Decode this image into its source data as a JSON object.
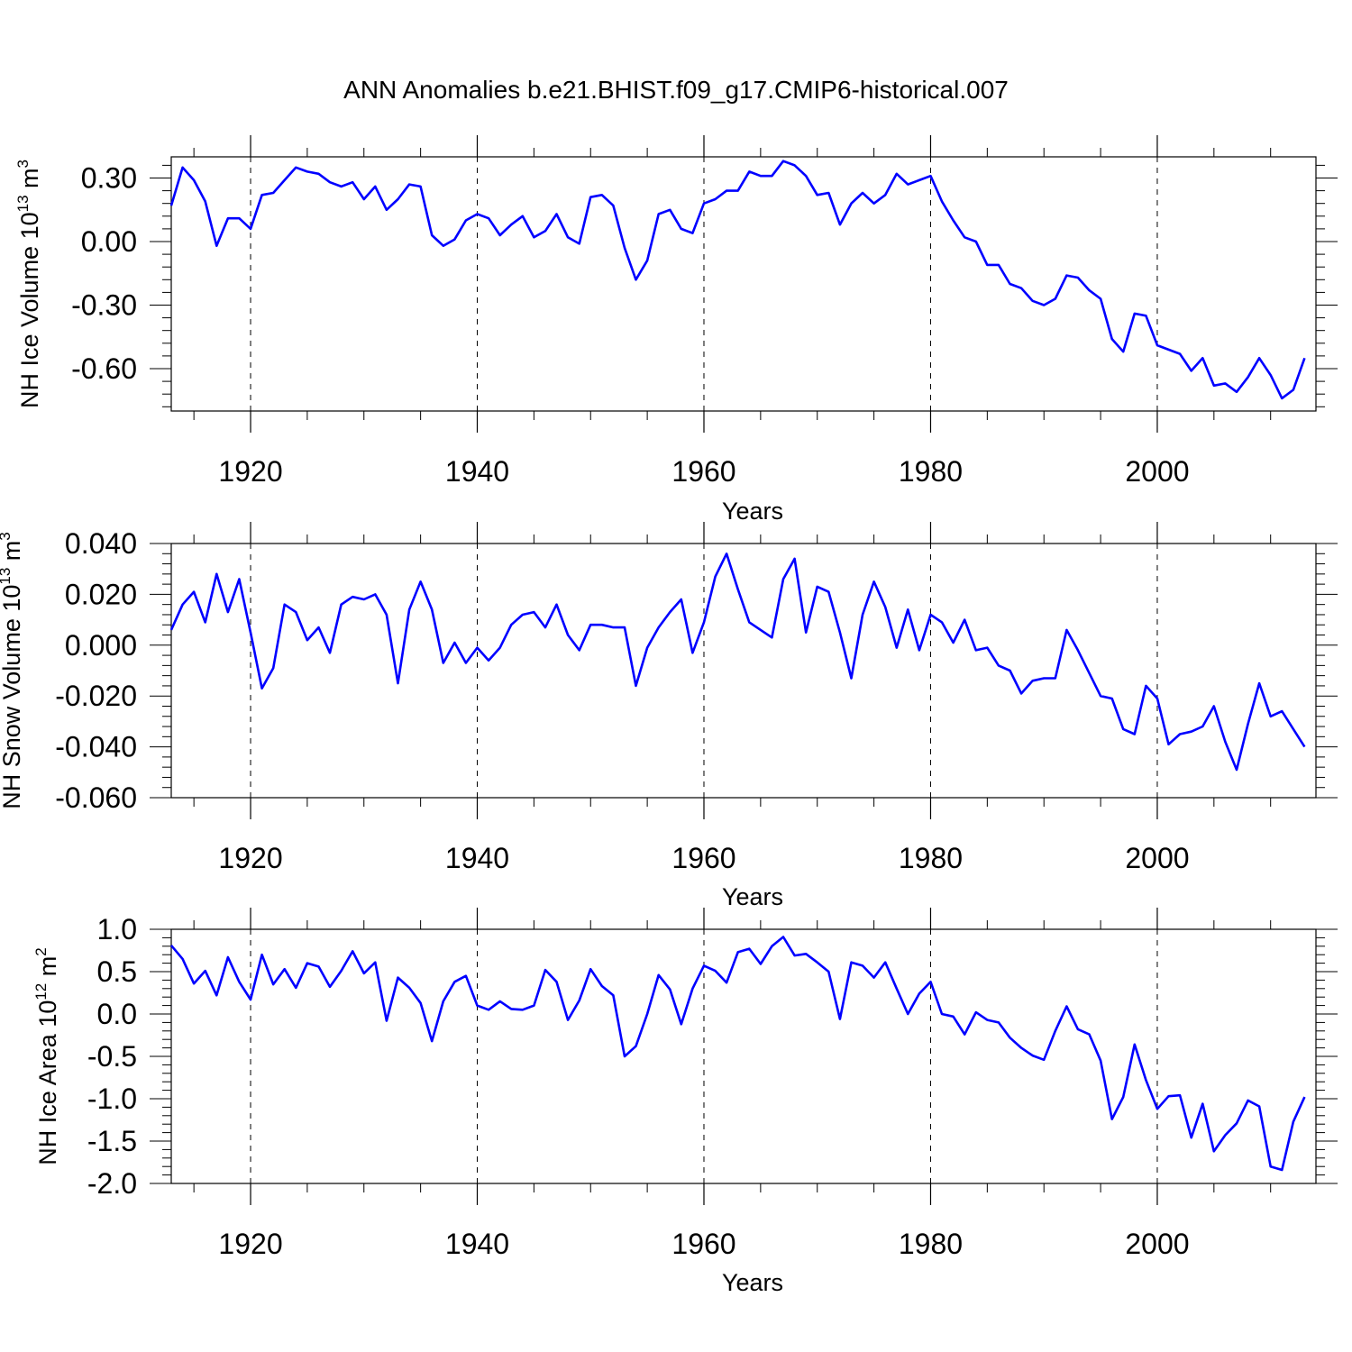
{
  "title": "ANN Anomalies b.e21.BHIST.f09_g17.CMIP6-historical.007",
  "line_color": "#0000ff",
  "chart_data": [
    {
      "type": "line",
      "ylabel": "NH Ice Volume 10",
      "ylabel_exp": "13",
      "ylabel_unit": "m",
      "ylabel_unit_exp": "3",
      "xlabel": "Years",
      "xlim": [
        1913,
        2014
      ],
      "ylim": [
        -0.8,
        0.4
      ],
      "xticks": [
        1920,
        1940,
        1960,
        1980,
        2000
      ],
      "xtick_labels": [
        "1920",
        "1940",
        "1960",
        "1980",
        "2000"
      ],
      "yticks": [
        0.3,
        0.0,
        -0.3,
        -0.6
      ],
      "ytick_labels": [
        "0.30",
        "0.00",
        "-0.30",
        "-0.60"
      ],
      "x_start": 1913,
      "y": [
        0.17,
        0.35,
        0.29,
        0.19,
        -0.02,
        0.11,
        0.11,
        0.06,
        0.22,
        0.23,
        0.29,
        0.35,
        0.33,
        0.32,
        0.28,
        0.26,
        0.28,
        0.2,
        0.26,
        0.15,
        0.2,
        0.27,
        0.26,
        0.03,
        -0.02,
        0.01,
        0.1,
        0.13,
        0.11,
        0.03,
        0.08,
        0.12,
        0.02,
        0.05,
        0.13,
        0.02,
        -0.01,
        0.21,
        0.22,
        0.17,
        -0.03,
        -0.18,
        -0.09,
        0.13,
        0.15,
        0.06,
        0.04,
        0.18,
        0.2,
        0.24,
        0.24,
        0.33,
        0.31,
        0.31,
        0.38,
        0.36,
        0.31,
        0.22,
        0.23,
        0.08,
        0.18,
        0.23,
        0.18,
        0.22,
        0.32,
        0.27,
        0.29,
        0.31,
        0.19,
        0.1,
        0.02,
        0.0,
        -0.11,
        -0.11,
        -0.2,
        -0.22,
        -0.28,
        -0.3,
        -0.27,
        -0.16,
        -0.17,
        -0.23,
        -0.27,
        -0.46,
        -0.52,
        -0.34,
        -0.35,
        -0.49,
        -0.51,
        -0.53,
        -0.61,
        -0.55,
        -0.68,
        -0.67,
        -0.71,
        -0.64,
        -0.55,
        -0.63,
        -0.74,
        -0.7,
        -0.55
      ]
    },
    {
      "type": "line",
      "ylabel": "NH Snow Volume 10",
      "ylabel_exp": "13",
      "ylabel_unit": "m",
      "ylabel_unit_exp": "3",
      "xlabel": "Years",
      "xlim": [
        1913,
        2014
      ],
      "ylim": [
        -0.06,
        0.04
      ],
      "xticks": [
        1920,
        1940,
        1960,
        1980,
        2000
      ],
      "xtick_labels": [
        "1920",
        "1940",
        "1960",
        "1980",
        "2000"
      ],
      "yticks": [
        0.04,
        0.02,
        0.0,
        -0.02,
        -0.04,
        -0.06
      ],
      "ytick_labels": [
        "0.040",
        "0.020",
        "0.000",
        "-0.020",
        "-0.040",
        "-0.060"
      ],
      "x_start": 1913,
      "y": [
        0.006,
        0.016,
        0.021,
        0.009,
        0.028,
        0.013,
        0.026,
        0.005,
        -0.017,
        -0.009,
        0.016,
        0.013,
        0.002,
        0.007,
        -0.003,
        0.016,
        0.019,
        0.018,
        0.02,
        0.012,
        -0.015,
        0.014,
        0.025,
        0.014,
        -0.007,
        0.001,
        -0.007,
        -0.001,
        -0.006,
        -0.001,
        0.008,
        0.012,
        0.013,
        0.007,
        0.016,
        0.004,
        -0.002,
        0.008,
        0.008,
        0.007,
        0.007,
        -0.016,
        -0.001,
        0.007,
        0.013,
        0.018,
        -0.003,
        0.009,
        0.027,
        0.036,
        0.022,
        0.009,
        0.006,
        0.003,
        0.026,
        0.034,
        0.005,
        0.023,
        0.021,
        0.005,
        -0.013,
        0.012,
        0.025,
        0.015,
        -0.001,
        0.014,
        -0.002,
        0.012,
        0.009,
        0.001,
        0.01,
        -0.002,
        -0.001,
        -0.008,
        -0.01,
        -0.019,
        -0.014,
        -0.013,
        -0.013,
        0.006,
        -0.002,
        -0.011,
        -0.02,
        -0.021,
        -0.033,
        -0.035,
        -0.016,
        -0.021,
        -0.039,
        -0.035,
        -0.034,
        -0.032,
        -0.024,
        -0.038,
        -0.049,
        -0.031,
        -0.015,
        -0.028,
        -0.026,
        -0.033,
        -0.04
      ]
    },
    {
      "type": "line",
      "ylabel": "NH Ice Area 10",
      "ylabel_exp": "12",
      "ylabel_unit": "m",
      "ylabel_unit_exp": "2",
      "xlabel": "Years",
      "xlim": [
        1913,
        2014
      ],
      "ylim": [
        -2.0,
        1.0
      ],
      "xticks": [
        1920,
        1940,
        1960,
        1980,
        2000
      ],
      "xtick_labels": [
        "1920",
        "1940",
        "1960",
        "1980",
        "2000"
      ],
      "yticks": [
        1.0,
        0.5,
        0.0,
        -0.5,
        -1.0,
        -1.5,
        -2.0
      ],
      "ytick_labels": [
        "1.0",
        "0.5",
        "0.0",
        "-0.5",
        "-1.0",
        "-1.5",
        "-2.0"
      ],
      "x_start": 1913,
      "y": [
        0.81,
        0.65,
        0.36,
        0.51,
        0.22,
        0.67,
        0.38,
        0.17,
        0.7,
        0.35,
        0.53,
        0.31,
        0.6,
        0.56,
        0.32,
        0.51,
        0.74,
        0.48,
        0.61,
        -0.08,
        0.43,
        0.31,
        0.13,
        -0.32,
        0.15,
        0.38,
        0.45,
        0.1,
        0.05,
        0.15,
        0.06,
        0.05,
        0.1,
        0.52,
        0.38,
        -0.07,
        0.16,
        0.53,
        0.33,
        0.22,
        -0.5,
        -0.38,
        0.0,
        0.46,
        0.29,
        -0.12,
        0.3,
        0.57,
        0.51,
        0.37,
        0.73,
        0.77,
        0.59,
        0.8,
        0.91,
        0.69,
        0.71,
        0.61,
        0.5,
        -0.06,
        0.61,
        0.57,
        0.43,
        0.61,
        0.3,
        0.0,
        0.24,
        0.38,
        0.0,
        -0.03,
        -0.24,
        0.02,
        -0.07,
        -0.1,
        -0.28,
        -0.4,
        -0.49,
        -0.54,
        -0.2,
        0.09,
        -0.18,
        -0.24,
        -0.55,
        -1.24,
        -0.98,
        -0.36,
        -0.78,
        -1.12,
        -0.97,
        -0.96,
        -1.46,
        -1.06,
        -1.62,
        -1.43,
        -1.29,
        -1.02,
        -1.09,
        -1.8,
        -1.84,
        -1.27,
        -0.98
      ]
    }
  ]
}
